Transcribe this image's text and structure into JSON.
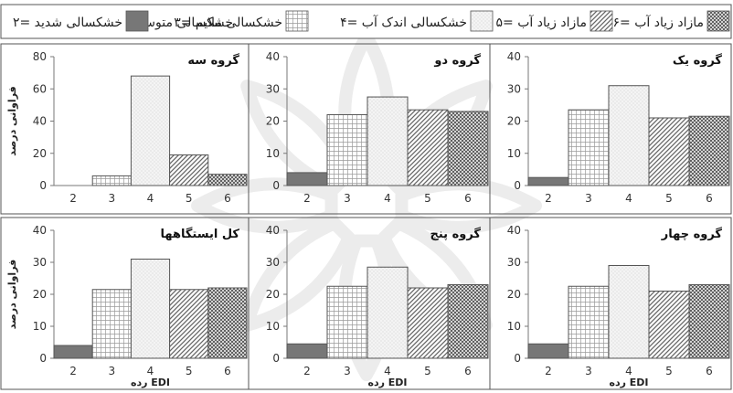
{
  "legend": {
    "items": [
      {
        "key": "6",
        "label": "۶= مازاد زیاد آب",
        "pattern": "cross"
      },
      {
        "key": "5",
        "label": "۵= مازاد زیاد آب",
        "pattern": "diag"
      },
      {
        "key": "4",
        "label": "۴= خشکسالی اندک آب",
        "pattern": "dots"
      },
      {
        "key": "3",
        "label": "۳= خشکسالی ملایم",
        "pattern": "grid"
      },
      {
        "key": "2",
        "label": "۲= خشکسالی شدید",
        "pattern": "solid"
      }
    ],
    "extra_label": "خشکسالی متوسط"
  },
  "colors": {
    "axis": "#333333",
    "frame": "#555555",
    "solid_fill": "#777777",
    "pattern_line": "#555555",
    "watermark": "#d9d9d9"
  },
  "chart_data": [
    {
      "type": "bar",
      "title": "گروه یک",
      "categories": [
        "2",
        "3",
        "4",
        "5",
        "6"
      ],
      "values": [
        2.5,
        23.5,
        31,
        21,
        21.5
      ],
      "ylim": [
        0,
        40
      ],
      "yticks": [
        0,
        10,
        20,
        30,
        40
      ],
      "xlabel": "",
      "ylabel": ""
    },
    {
      "type": "bar",
      "title": "گروه دو",
      "categories": [
        "2",
        "3",
        "4",
        "5",
        "6"
      ],
      "values": [
        4,
        22,
        27.5,
        23.5,
        23
      ],
      "ylim": [
        0,
        40
      ],
      "yticks": [
        0,
        10,
        20,
        30,
        40
      ],
      "xlabel": "",
      "ylabel": ""
    },
    {
      "type": "bar",
      "title": "گروه سه",
      "categories": [
        "2",
        "3",
        "4",
        "5",
        "6"
      ],
      "values": [
        0,
        6,
        68,
        19,
        7
      ],
      "ylim": [
        0,
        80
      ],
      "yticks": [
        0,
        20,
        40,
        60,
        80
      ],
      "xlabel": "",
      "ylabel": "فراوانی درصد"
    },
    {
      "type": "bar",
      "title": "گروه چهار",
      "categories": [
        "2",
        "3",
        "4",
        "5",
        "6"
      ],
      "values": [
        4.5,
        22.5,
        29,
        21,
        23
      ],
      "ylim": [
        0,
        40
      ],
      "yticks": [
        0,
        10,
        20,
        30,
        40
      ],
      "xlabel": "رده EDI",
      "ylabel": ""
    },
    {
      "type": "bar",
      "title": "گروه پنج",
      "categories": [
        "2",
        "3",
        "4",
        "5",
        "6"
      ],
      "values": [
        4.5,
        22.5,
        28.5,
        22,
        23
      ],
      "ylim": [
        0,
        40
      ],
      "yticks": [
        0,
        10,
        20,
        30,
        40
      ],
      "xlabel": "رده EDI",
      "ylabel": ""
    },
    {
      "type": "bar",
      "title": "کل ایستگاهها",
      "categories": [
        "2",
        "3",
        "4",
        "5",
        "6"
      ],
      "values": [
        4,
        21.5,
        31,
        21.5,
        22
      ],
      "ylim": [
        0,
        40
      ],
      "yticks": [
        0,
        10,
        20,
        30,
        40
      ],
      "xlabel": "رده EDI",
      "ylabel": "فراوانی درصد"
    }
  ]
}
